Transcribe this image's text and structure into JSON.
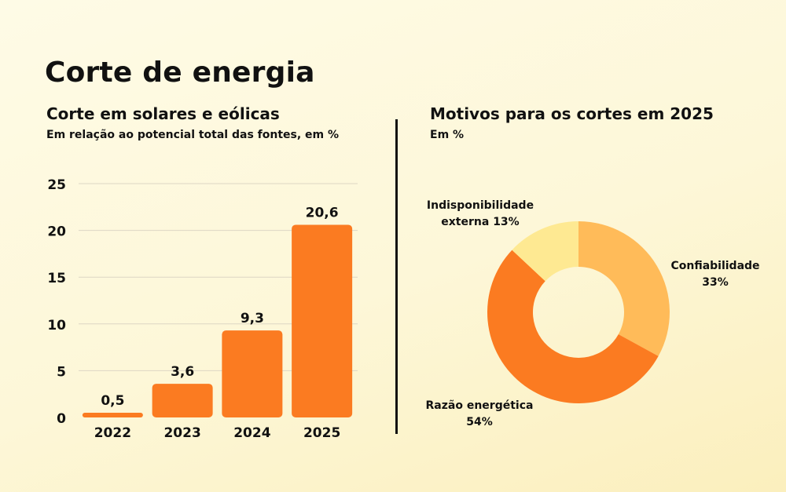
{
  "title": "Corte de energia",
  "chart_data": [
    {
      "type": "bar",
      "title": "Corte em solares e eólicas",
      "subtitle": "Em relação ao potencial total das fontes, em %",
      "categories": [
        "2022",
        "2023",
        "2024",
        "2025"
      ],
      "values": [
        0.5,
        3.6,
        9.3,
        20.6
      ],
      "value_labels": [
        "0,5",
        "3,6",
        "9,3",
        "20,6"
      ],
      "y_ticks": [
        0,
        5,
        10,
        15,
        20,
        25
      ],
      "ylim": [
        0,
        25
      ],
      "grid": true,
      "colors": {
        "bar": "#fb7b21",
        "grid": "#ddd6c4"
      }
    },
    {
      "type": "pie",
      "donut": true,
      "title": "Motivos para os cortes em 2025",
      "subtitle": "Em %",
      "slices": [
        {
          "label": "Confiabilidade",
          "value": 33,
          "label_text": "33%",
          "color": "#ffbb59"
        },
        {
          "label": "Razão energética",
          "value": 54,
          "label_text": "54%",
          "color": "#fb7b21"
        },
        {
          "label": "Indisponibilidade externa",
          "value": 13,
          "label_text": "13%",
          "color": "#fee992"
        }
      ]
    }
  ]
}
